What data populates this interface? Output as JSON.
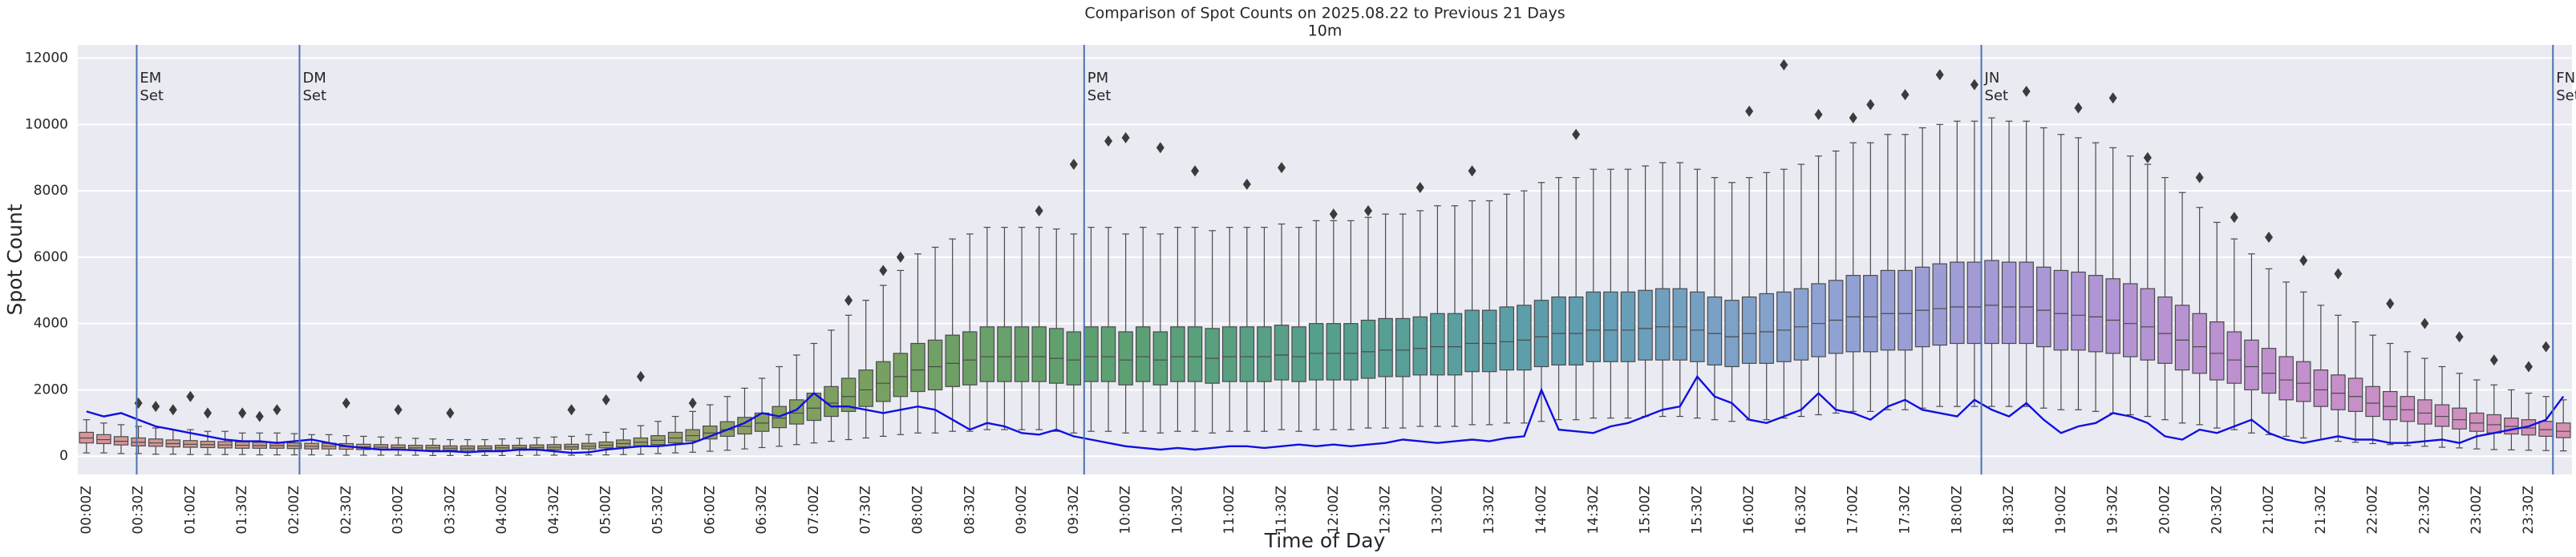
{
  "chart_data": {
    "type": "box",
    "title": "Comparison of Spot Counts on 2025.08.22 to Previous 21 Days",
    "subtitle": "10m",
    "xlabel": "Time of Day",
    "ylabel": "Spot Count",
    "ylim": [
      -550,
      12400
    ],
    "yticks": [
      0,
      2000,
      4000,
      6000,
      8000,
      10000,
      12000
    ],
    "grid": true,
    "categories": [
      "00:00Z",
      null,
      null,
      "00:30Z",
      null,
      null,
      "01:00Z",
      null,
      null,
      "01:30Z",
      null,
      null,
      "02:00Z",
      null,
      null,
      "02:30Z",
      null,
      null,
      "03:00Z",
      null,
      null,
      "03:30Z",
      null,
      null,
      "04:00Z",
      null,
      null,
      "04:30Z",
      null,
      null,
      "05:00Z",
      null,
      null,
      "05:30Z",
      null,
      null,
      "06:00Z",
      null,
      null,
      "06:30Z",
      null,
      null,
      "07:00Z",
      null,
      null,
      "07:30Z",
      null,
      null,
      "08:00Z",
      null,
      null,
      "08:30Z",
      null,
      null,
      "09:00Z",
      null,
      null,
      "09:30Z",
      null,
      null,
      "10:00Z",
      null,
      null,
      "10:30Z",
      null,
      null,
      "11:00Z",
      null,
      null,
      "11:30Z",
      null,
      null,
      "12:00Z",
      null,
      null,
      "12:30Z",
      null,
      null,
      "13:00Z",
      null,
      null,
      "13:30Z",
      null,
      null,
      "14:00Z",
      null,
      null,
      "14:30Z",
      null,
      null,
      "15:00Z",
      null,
      null,
      "15:30Z",
      null,
      null,
      "16:00Z",
      null,
      null,
      "16:30Z",
      null,
      null,
      "17:00Z",
      null,
      null,
      "17:30Z",
      null,
      null,
      "18:00Z",
      null,
      null,
      "18:30Z",
      null,
      null,
      "19:00Z",
      null,
      null,
      "19:30Z",
      null,
      null,
      "20:00Z",
      null,
      null,
      "20:30Z",
      null,
      null,
      "21:00Z",
      null,
      null,
      "21:30Z",
      null,
      null,
      "22:00Z",
      null,
      null,
      "22:30Z",
      null,
      null,
      "23:00Z",
      null,
      null,
      "23:30Z",
      null,
      null
    ],
    "box": {
      "palette": [
        "#d9959b",
        "#c19c83",
        "#a49e6f",
        "#7ea05f",
        "#5ea06e",
        "#55a08c",
        "#5e9db0",
        "#8ea3d4",
        "#ae96d6",
        "#c48fcc",
        "#d690b4"
      ],
      "edge_color": "#4a4a4a",
      "q1": [
        400,
        380,
        340,
        310,
        300,
        280,
        270,
        260,
        250,
        240,
        240,
        240,
        230,
        220,
        220,
        210,
        200,
        200,
        190,
        180,
        180,
        180,
        180,
        180,
        180,
        180,
        190,
        200,
        210,
        220,
        250,
        280,
        310,
        350,
        400,
        460,
        520,
        600,
        670,
        750,
        860,
        970,
        1080,
        1200,
        1350,
        1500,
        1650,
        1800,
        1950,
        2000,
        2100,
        2150,
        2250,
        2250,
        2250,
        2250,
        2200,
        2150,
        2250,
        2250,
        2150,
        2250,
        2150,
        2250,
        2250,
        2200,
        2250,
        2250,
        2250,
        2300,
        2250,
        2300,
        2300,
        2300,
        2350,
        2400,
        2400,
        2450,
        2450,
        2450,
        2550,
        2550,
        2600,
        2600,
        2700,
        2750,
        2750,
        2850,
        2850,
        2850,
        2900,
        2900,
        2900,
        2850,
        2750,
        2700,
        2800,
        2800,
        2850,
        2900,
        3000,
        3100,
        3150,
        3150,
        3200,
        3200,
        3300,
        3350,
        3400,
        3400,
        3400,
        3400,
        3400,
        3300,
        3200,
        3200,
        3150,
        3100,
        3000,
        2900,
        2800,
        2600,
        2500,
        2300,
        2200,
        2000,
        1900,
        1700,
        1650,
        1500,
        1400,
        1350,
        1200,
        1100,
        1050,
        970,
        900,
        820,
        750,
        700,
        670,
        640,
        600,
        560
      ],
      "median": [
        550,
        500,
        450,
        420,
        400,
        380,
        360,
        350,
        340,
        330,
        320,
        320,
        310,
        300,
        300,
        290,
        280,
        270,
        260,
        250,
        250,
        240,
        240,
        240,
        250,
        250,
        260,
        270,
        280,
        300,
        330,
        380,
        420,
        480,
        550,
        620,
        700,
        800,
        900,
        1000,
        1150,
        1300,
        1450,
        1600,
        1800,
        2000,
        2200,
        2400,
        2600,
        2700,
        2800,
        2900,
        3000,
        3000,
        3000,
        3000,
        2950,
        2900,
        3000,
        3000,
        2900,
        3000,
        2900,
        3000,
        3000,
        2950,
        3000,
        3000,
        3000,
        3050,
        3000,
        3100,
        3100,
        3100,
        3150,
        3200,
        3200,
        3250,
        3300,
        3300,
        3400,
        3400,
        3450,
        3500,
        3600,
        3700,
        3700,
        3800,
        3800,
        3800,
        3850,
        3900,
        3900,
        3800,
        3700,
        3600,
        3700,
        3750,
        3800,
        3900,
        4000,
        4100,
        4200,
        4200,
        4300,
        4300,
        4400,
        4450,
        4500,
        4500,
        4550,
        4500,
        4500,
        4400,
        4300,
        4250,
        4200,
        4100,
        4000,
        3900,
        3700,
        3500,
        3300,
        3100,
        2900,
        2700,
        2500,
        2300,
        2200,
        2000,
        1900,
        1800,
        1600,
        1500,
        1400,
        1300,
        1200,
        1100,
        1000,
        950,
        900,
        850,
        800,
        750
      ],
      "q3": [
        720,
        650,
        590,
        550,
        520,
        490,
        470,
        450,
        440,
        430,
        420,
        420,
        400,
        390,
        390,
        380,
        360,
        350,
        340,
        330,
        330,
        310,
        310,
        310,
        330,
        330,
        340,
        350,
        360,
        390,
        430,
        490,
        550,
        620,
        720,
        800,
        910,
        1040,
        1170,
        1300,
        1500,
        1700,
        1900,
        2100,
        2350,
        2600,
        2850,
        3100,
        3400,
        3500,
        3650,
        3750,
        3900,
        3900,
        3900,
        3900,
        3850,
        3750,
        3900,
        3900,
        3750,
        3900,
        3750,
        3900,
        3900,
        3850,
        3900,
        3900,
        3900,
        3950,
        3900,
        4000,
        4000,
        4000,
        4100,
        4150,
        4150,
        4200,
        4300,
        4300,
        4400,
        4400,
        4500,
        4550,
        4700,
        4800,
        4800,
        4950,
        4950,
        4950,
        5000,
        5050,
        5050,
        4950,
        4800,
        4700,
        4800,
        4900,
        4950,
        5050,
        5200,
        5300,
        5450,
        5450,
        5600,
        5600,
        5700,
        5800,
        5850,
        5850,
        5900,
        5850,
        5850,
        5700,
        5600,
        5550,
        5450,
        5350,
        5200,
        5050,
        4800,
        4550,
        4300,
        4050,
        3750,
        3500,
        3250,
        3000,
        2850,
        2600,
        2450,
        2350,
        2100,
        1950,
        1800,
        1700,
        1550,
        1450,
        1300,
        1250,
        1150,
        1100,
        1050,
        1000
      ],
      "whislo": [
        100,
        100,
        80,
        80,
        60,
        60,
        50,
        50,
        50,
        50,
        40,
        40,
        40,
        40,
        30,
        30,
        30,
        30,
        30,
        30,
        20,
        20,
        20,
        20,
        20,
        20,
        30,
        30,
        30,
        40,
        40,
        50,
        60,
        80,
        100,
        120,
        150,
        180,
        220,
        260,
        300,
        350,
        400,
        450,
        500,
        550,
        600,
        650,
        700,
        700,
        750,
        750,
        800,
        800,
        800,
        800,
        750,
        700,
        750,
        750,
        700,
        750,
        700,
        750,
        750,
        700,
        750,
        750,
        750,
        800,
        750,
        800,
        800,
        800,
        850,
        850,
        850,
        900,
        900,
        900,
        950,
        950,
        1000,
        1000,
        1050,
        1100,
        1100,
        1150,
        1150,
        1150,
        1200,
        1200,
        1200,
        1150,
        1100,
        1050,
        1100,
        1100,
        1150,
        1200,
        1250,
        1300,
        1350,
        1350,
        1400,
        1400,
        1450,
        1500,
        1500,
        1500,
        1500,
        1500,
        1500,
        1450,
        1400,
        1400,
        1350,
        1300,
        1250,
        1200,
        1100,
        1000,
        950,
        850,
        800,
        700,
        650,
        600,
        550,
        500,
        450,
        420,
        380,
        350,
        320,
        300,
        270,
        250,
        220,
        200,
        190,
        180,
        170,
        160
      ],
      "whishi": [
        1100,
        1000,
        950,
        900,
        850,
        800,
        800,
        750,
        750,
        700,
        700,
        700,
        680,
        650,
        650,
        620,
        600,
        580,
        560,
        540,
        520,
        500,
        500,
        500,
        520,
        540,
        560,
        580,
        600,
        650,
        720,
        820,
        920,
        1050,
        1200,
        1350,
        1550,
        1800,
        2050,
        2350,
        2700,
        3050,
        3400,
        3800,
        4250,
        4700,
        5150,
        5600,
        6100,
        6300,
        6550,
        6700,
        6900,
        6900,
        6900,
        6900,
        6850,
        6700,
        6900,
        6900,
        6700,
        6900,
        6700,
        6900,
        6900,
        6800,
        6900,
        6900,
        6900,
        7000,
        6900,
        7100,
        7100,
        7100,
        7200,
        7300,
        7300,
        7400,
        7550,
        7550,
        7700,
        7700,
        7900,
        8000,
        8250,
        8400,
        8400,
        8650,
        8650,
        8650,
        8750,
        8850,
        8850,
        8650,
        8400,
        8250,
        8400,
        8550,
        8650,
        8800,
        9050,
        9200,
        9450,
        9450,
        9700,
        9700,
        9900,
        10000,
        10100,
        10100,
        10200,
        10100,
        10100,
        9900,
        9700,
        9600,
        9450,
        9300,
        9050,
        8800,
        8400,
        7950,
        7500,
        7050,
        6550,
        6100,
        5650,
        5250,
        4950,
        4550,
        4250,
        4050,
        3650,
        3400,
        3150,
        2950,
        2700,
        2500,
        2300,
        2150,
        2000,
        1900,
        1800,
        1700
      ]
    },
    "outliers": {
      "color": "#3b3b3b",
      "x": [
        3,
        4,
        5,
        6,
        7,
        9,
        10,
        11,
        15,
        18,
        21,
        28,
        30,
        32,
        35,
        44,
        46,
        47,
        55,
        57,
        59,
        60,
        62,
        64,
        67,
        69,
        72,
        74,
        77,
        80,
        86,
        96,
        98,
        100,
        102,
        103,
        105,
        107,
        109,
        112,
        115,
        117,
        119,
        122,
        124,
        126,
        128,
        130,
        133,
        135,
        137,
        139,
        141,
        142
      ],
      "y": [
        1600,
        1500,
        1400,
        1800,
        1300,
        1300,
        1200,
        1400,
        1600,
        1400,
        1300,
        1400,
        1700,
        2400,
        1600,
        4700,
        5600,
        6000,
        7400,
        8800,
        9500,
        9600,
        9300,
        8600,
        8200,
        8700,
        7300,
        7400,
        8100,
        8600,
        9700,
        10400,
        11800,
        10300,
        10200,
        10600,
        10900,
        11500,
        11200,
        11000,
        10500,
        10800,
        9000,
        8400,
        7200,
        6600,
        5900,
        5500,
        4600,
        4000,
        3600,
        2900,
        2700,
        3300
      ]
    },
    "line": {
      "color": "#1010e0",
      "values": [
        1350,
        1200,
        1300,
        1100,
        900,
        800,
        700,
        600,
        500,
        450,
        450,
        400,
        450,
        500,
        400,
        300,
        250,
        200,
        200,
        180,
        150,
        150,
        120,
        150,
        150,
        200,
        200,
        150,
        100,
        120,
        200,
        250,
        300,
        300,
        350,
        400,
        600,
        800,
        1000,
        1300,
        1200,
        1400,
        1900,
        1500,
        1500,
        1400,
        1300,
        1400,
        1500,
        1400,
        1100,
        800,
        1000,
        900,
        700,
        650,
        800,
        600,
        500,
        400,
        300,
        250,
        200,
        250,
        200,
        250,
        300,
        300,
        250,
        300,
        350,
        300,
        350,
        300,
        350,
        400,
        500,
        450,
        400,
        450,
        500,
        450,
        550,
        600,
        2000,
        800,
        750,
        700,
        900,
        1000,
        1200,
        1400,
        1500,
        2400,
        1800,
        1600,
        1100,
        1000,
        1200,
        1400,
        1900,
        1400,
        1300,
        1100,
        1500,
        1700,
        1400,
        1300,
        1200,
        1700,
        1400,
        1200,
        1600,
        1100,
        700,
        900,
        1000,
        1300,
        1200,
        1000,
        600,
        500,
        800,
        700,
        900,
        1100,
        700,
        500,
        400,
        500,
        600,
        500,
        500,
        400,
        400,
        450,
        500,
        400,
        600,
        700,
        800,
        900,
        1100,
        1800
      ]
    },
    "annotation_color": "#4c72b0",
    "annotations": [
      {
        "x": 2.9,
        "lines": [
          "EM",
          "Set"
        ]
      },
      {
        "x": 12.3,
        "lines": [
          "DM",
          "Set"
        ]
      },
      {
        "x": 57.6,
        "lines": [
          "PM",
          "Set"
        ]
      },
      {
        "x": 109.4,
        "lines": [
          "JN",
          "Set"
        ]
      },
      {
        "x": 142.4,
        "lines": [
          "FN",
          "Set"
        ]
      }
    ]
  }
}
